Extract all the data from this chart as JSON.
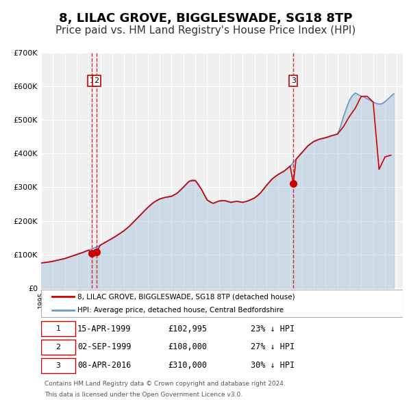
{
  "title": "8, LILAC GROVE, BIGGLESWADE, SG18 8TP",
  "subtitle": "Price paid vs. HM Land Registry's House Price Index (HPI)",
  "title_fontsize": 13,
  "subtitle_fontsize": 11,
  "background_color": "#ffffff",
  "plot_bg_color": "#f0f0f0",
  "ylabel": "",
  "ylim": [
    0,
    700000
  ],
  "yticks": [
    0,
    100000,
    200000,
    300000,
    400000,
    500000,
    600000,
    700000
  ],
  "ytick_labels": [
    "£0",
    "£100K",
    "£200K",
    "£300K",
    "£400K",
    "£500K",
    "£600K",
    "£700K"
  ],
  "xlim_start": 1995.0,
  "xlim_end": 2025.5,
  "red_line_color": "#cc0000",
  "blue_line_color": "#6699cc",
  "dashed_vline_color": "#cc0000",
  "transaction_dates": [
    1999.29,
    1999.67,
    2016.27
  ],
  "transaction_prices": [
    102995,
    108000,
    310000
  ],
  "transaction_labels": [
    "1",
    "2",
    "3"
  ],
  "legend_red_label": "8, LILAC GROVE, BIGGLESWADE, SG18 8TP (detached house)",
  "legend_blue_label": "HPI: Average price, detached house, Central Bedfordshire",
  "table_rows": [
    [
      "1",
      "15-APR-1999",
      "£102,995",
      "23% ↓ HPI"
    ],
    [
      "2",
      "02-SEP-1999",
      "£108,000",
      "27% ↓ HPI"
    ],
    [
      "3",
      "08-APR-2016",
      "£310,000",
      "30% ↓ HPI"
    ]
  ],
  "footnote1": "Contains HM Land Registry data © Crown copyright and database right 2024.",
  "footnote2": "This data is licensed under the Open Government Licence v3.0.",
  "hpi_years": [
    1995.0,
    1995.25,
    1995.5,
    1995.75,
    1996.0,
    1996.25,
    1996.5,
    1996.75,
    1997.0,
    1997.25,
    1997.5,
    1997.75,
    1998.0,
    1998.25,
    1998.5,
    1998.75,
    1999.0,
    1999.25,
    1999.5,
    1999.75,
    2000.0,
    2000.25,
    2000.5,
    2000.75,
    2001.0,
    2001.25,
    2001.5,
    2001.75,
    2002.0,
    2002.25,
    2002.5,
    2002.75,
    2003.0,
    2003.25,
    2003.5,
    2003.75,
    2004.0,
    2004.25,
    2004.5,
    2004.75,
    2005.0,
    2005.25,
    2005.5,
    2005.75,
    2006.0,
    2006.25,
    2006.5,
    2006.75,
    2007.0,
    2007.25,
    2007.5,
    2007.75,
    2008.0,
    2008.25,
    2008.5,
    2008.75,
    2009.0,
    2009.25,
    2009.5,
    2009.75,
    2010.0,
    2010.25,
    2010.5,
    2010.75,
    2011.0,
    2011.25,
    2011.5,
    2011.75,
    2012.0,
    2012.25,
    2012.5,
    2012.75,
    2013.0,
    2013.25,
    2013.5,
    2013.75,
    2014.0,
    2014.25,
    2014.5,
    2014.75,
    2015.0,
    2015.25,
    2015.5,
    2015.75,
    2016.0,
    2016.25,
    2016.5,
    2016.75,
    2017.0,
    2017.25,
    2017.5,
    2017.75,
    2018.0,
    2018.25,
    2018.5,
    2018.75,
    2019.0,
    2019.25,
    2019.5,
    2019.75,
    2020.0,
    2020.25,
    2020.5,
    2020.75,
    2021.0,
    2021.25,
    2021.5,
    2021.75,
    2022.0,
    2022.25,
    2022.5,
    2022.75,
    2023.0,
    2023.25,
    2023.5,
    2023.75,
    2024.0,
    2024.25,
    2024.5,
    2024.75
  ],
  "hpi_values": [
    75000,
    76000,
    77000,
    78500,
    80000,
    82000,
    84000,
    86000,
    88000,
    91000,
    94000,
    97000,
    100000,
    103000,
    106000,
    110000,
    113000,
    116000,
    120000,
    124000,
    128000,
    133000,
    138000,
    143000,
    148000,
    153000,
    159000,
    165000,
    171000,
    178000,
    186000,
    195000,
    204000,
    213000,
    222000,
    231000,
    240000,
    248000,
    255000,
    261000,
    265000,
    268000,
    270000,
    271000,
    273000,
    277000,
    283000,
    291000,
    300000,
    310000,
    318000,
    322000,
    320000,
    310000,
    295000,
    278000,
    262000,
    255000,
    252000,
    255000,
    259000,
    261000,
    260000,
    257000,
    255000,
    257000,
    258000,
    257000,
    255000,
    257000,
    260000,
    264000,
    268000,
    274000,
    283000,
    294000,
    305000,
    316000,
    325000,
    332000,
    338000,
    343000,
    348000,
    355000,
    363000,
    373000,
    383000,
    393000,
    403000,
    413000,
    423000,
    430000,
    436000,
    440000,
    443000,
    445000,
    447000,
    450000,
    453000,
    455000,
    458000,
    480000,
    510000,
    535000,
    558000,
    572000,
    580000,
    575000,
    570000,
    568000,
    563000,
    558000,
    553000,
    549000,
    547000,
    548000,
    554000,
    562000,
    570000,
    578000
  ],
  "red_line_years": [
    1995.0,
    1995.5,
    1996.0,
    1996.5,
    1997.0,
    1997.5,
    1998.0,
    1998.5,
    1999.0,
    1999.29,
    1999.67,
    2000.0,
    2000.5,
    2001.0,
    2001.5,
    2002.0,
    2002.5,
    2003.0,
    2003.5,
    2004.0,
    2004.5,
    2005.0,
    2005.5,
    2006.0,
    2006.5,
    2007.0,
    2007.5,
    2008.0,
    2008.5,
    2009.0,
    2009.5,
    2010.0,
    2010.5,
    2011.0,
    2011.5,
    2012.0,
    2012.5,
    2013.0,
    2013.5,
    2014.0,
    2014.5,
    2015.0,
    2015.5,
    2016.0,
    2016.27,
    2016.5,
    2017.0,
    2017.5,
    2018.0,
    2018.5,
    2019.0,
    2019.5,
    2020.0,
    2020.5,
    2021.0,
    2021.5,
    2022.0,
    2022.5,
    2023.0,
    2023.5,
    2024.0,
    2024.5
  ],
  "red_line_values": [
    75000,
    77000,
    80000,
    84000,
    88000,
    94000,
    100000,
    106000,
    113000,
    102995,
    108000,
    128000,
    138000,
    148000,
    159000,
    171000,
    186000,
    204000,
    222000,
    240000,
    255000,
    265000,
    270000,
    273000,
    283000,
    300000,
    318000,
    320000,
    295000,
    262000,
    252000,
    259000,
    260000,
    255000,
    258000,
    255000,
    260000,
    268000,
    283000,
    305000,
    325000,
    338000,
    348000,
    363000,
    310000,
    383000,
    403000,
    423000,
    436000,
    443000,
    447000,
    453000,
    458000,
    480000,
    510000,
    535000,
    570000,
    570000,
    553000,
    353000,
    390000,
    395000
  ]
}
